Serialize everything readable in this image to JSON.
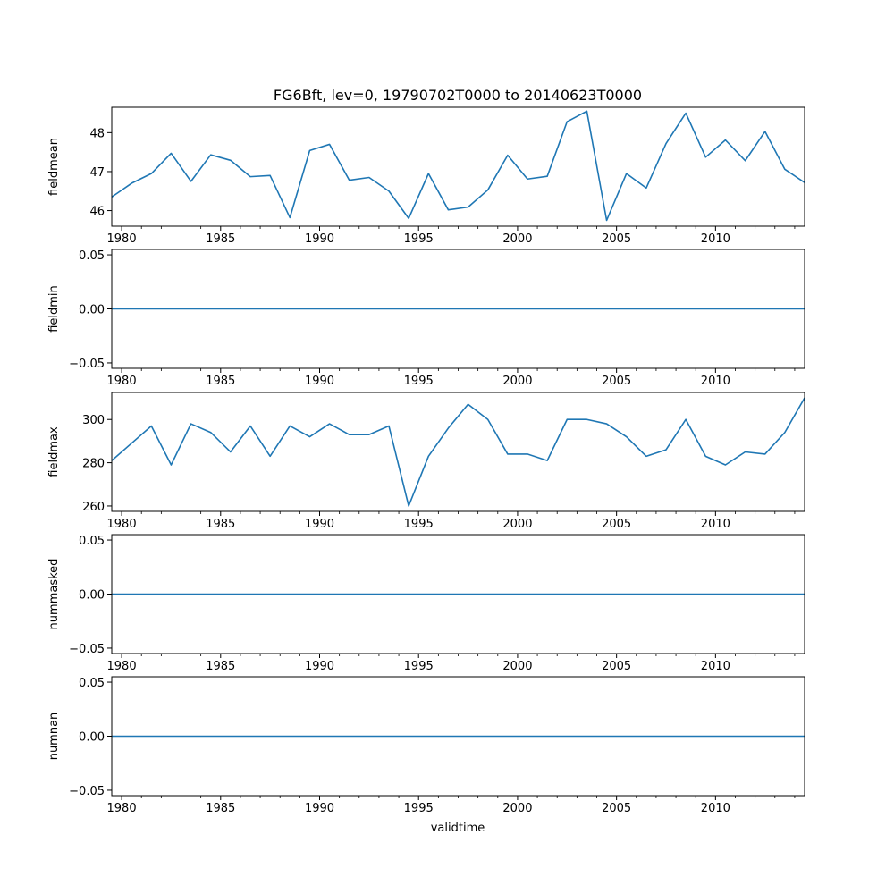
{
  "chart_data": {
    "type": "line",
    "title": "FG6Bft, lev=0, 19790702T0000 to 20140623T0000",
    "xlabel": "validtime",
    "x": [
      1979.5,
      1980.5,
      1981.5,
      1982.5,
      1983.5,
      1984.5,
      1985.5,
      1986.5,
      1987.5,
      1988.5,
      1989.5,
      1990.5,
      1991.5,
      1992.5,
      1993.5,
      1994.5,
      1995.5,
      1996.5,
      1997.5,
      1998.5,
      1999.5,
      2000.5,
      2001.5,
      2002.5,
      2003.5,
      2004.5,
      2005.5,
      2006.5,
      2007.5,
      2008.5,
      2009.5,
      2010.5,
      2011.5,
      2012.5,
      2013.5,
      2014.5
    ],
    "xlim": [
      1979.5,
      2014.5
    ],
    "x_ticks": [
      1980,
      1985,
      1990,
      1995,
      2000,
      2005,
      2010
    ],
    "x_minor_ticks": [
      1981,
      1982,
      1983,
      1984,
      1986,
      1987,
      1988,
      1989,
      1991,
      1992,
      1993,
      1994,
      1996,
      1997,
      1998,
      1999,
      2001,
      2002,
      2003,
      2004,
      2006,
      2007,
      2008,
      2009,
      2011,
      2012,
      2013,
      2014
    ],
    "color": "#1f77b4",
    "panels": [
      {
        "ylabel": "fieldmean",
        "ylim": [
          45.6,
          48.65
        ],
        "y_ticks": [
          "46",
          "47",
          "48"
        ],
        "y_tick_values": [
          46,
          47,
          48
        ],
        "values": [
          46.35,
          46.7,
          46.95,
          47.47,
          46.75,
          47.43,
          47.29,
          46.87,
          46.9,
          45.82,
          47.54,
          47.7,
          46.78,
          46.85,
          46.5,
          45.8,
          46.95,
          46.02,
          46.09,
          46.53,
          47.42,
          46.81,
          46.88,
          48.28,
          48.55,
          45.75,
          46.95,
          46.58,
          47.72,
          48.5,
          47.37,
          47.81,
          47.28,
          48.03,
          47.06,
          46.72
        ]
      },
      {
        "ylabel": "fieldmin",
        "ylim": [
          -0.055,
          0.055
        ],
        "y_ticks": [
          "0.05",
          "0.00",
          "−0.05"
        ],
        "y_tick_values": [
          0.05,
          0.0,
          -0.05
        ],
        "values": [
          0,
          0,
          0,
          0,
          0,
          0,
          0,
          0,
          0,
          0,
          0,
          0,
          0,
          0,
          0,
          0,
          0,
          0,
          0,
          0,
          0,
          0,
          0,
          0,
          0,
          0,
          0,
          0,
          0,
          0,
          0,
          0,
          0,
          0,
          0,
          0
        ]
      },
      {
        "ylabel": "fieldmax",
        "ylim": [
          257.5,
          312.5
        ],
        "y_ticks": [
          "300",
          "280",
          "260"
        ],
        "y_tick_values": [
          300,
          280,
          260
        ],
        "values": [
          281,
          289,
          297,
          279,
          298,
          294,
          285,
          297,
          283,
          297,
          292,
          298,
          293,
          293,
          297,
          260,
          283,
          296,
          307,
          300,
          284,
          284,
          281,
          300,
          300,
          298,
          292,
          283,
          286,
          300,
          283,
          279,
          285,
          284,
          294,
          310
        ]
      },
      {
        "ylabel": "nummasked",
        "ylim": [
          -0.055,
          0.055
        ],
        "y_ticks": [
          "0.05",
          "0.00",
          "−0.05"
        ],
        "y_tick_values": [
          0.05,
          0.0,
          -0.05
        ],
        "values": [
          0,
          0,
          0,
          0,
          0,
          0,
          0,
          0,
          0,
          0,
          0,
          0,
          0,
          0,
          0,
          0,
          0,
          0,
          0,
          0,
          0,
          0,
          0,
          0,
          0,
          0,
          0,
          0,
          0,
          0,
          0,
          0,
          0,
          0,
          0,
          0
        ]
      },
      {
        "ylabel": "numnan",
        "ylim": [
          -0.055,
          0.055
        ],
        "y_ticks": [
          "0.05",
          "0.00",
          "−0.05"
        ],
        "y_tick_values": [
          0.05,
          0.0,
          -0.05
        ],
        "values": [
          0,
          0,
          0,
          0,
          0,
          0,
          0,
          0,
          0,
          0,
          0,
          0,
          0,
          0,
          0,
          0,
          0,
          0,
          0,
          0,
          0,
          0,
          0,
          0,
          0,
          0,
          0,
          0,
          0,
          0,
          0,
          0,
          0,
          0,
          0,
          0
        ]
      }
    ]
  }
}
